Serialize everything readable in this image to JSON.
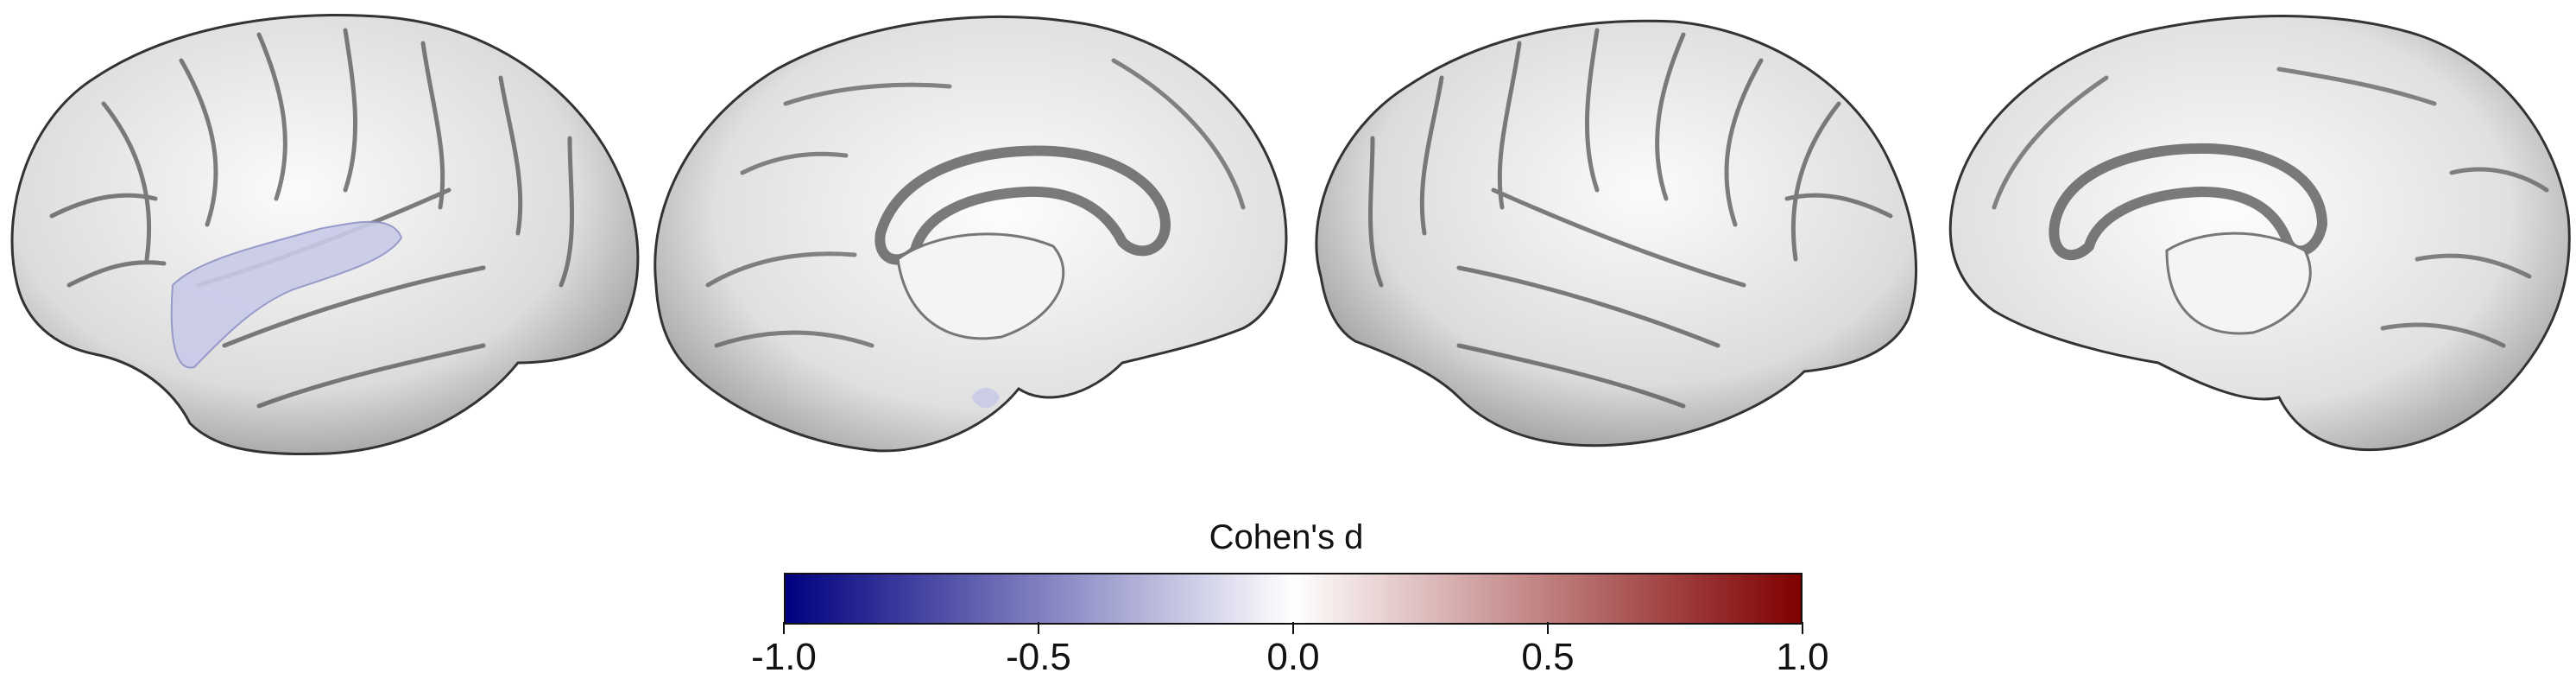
{
  "colorbar": {
    "title": "Cohen's d",
    "min": -1.0,
    "max": 1.0,
    "ticks": [
      {
        "value": -1.0,
        "label": "-1.0"
      },
      {
        "value": -0.5,
        "label": "-0.5"
      },
      {
        "value": 0.0,
        "label": "0.0"
      },
      {
        "value": 0.5,
        "label": "0.5"
      },
      {
        "value": 1.0,
        "label": "1.0"
      }
    ],
    "colors": {
      "low": "#000080",
      "mid": "#ffffff",
      "high": "#800000"
    }
  },
  "highlight": {
    "region_value": -0.15,
    "color": "#c9cbe8"
  }
}
